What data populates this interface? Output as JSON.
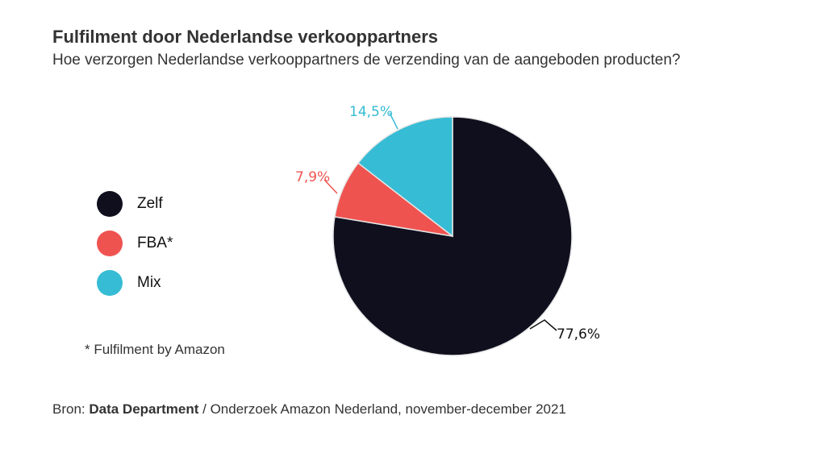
{
  "title": "Fulfilment door Nederlandse verkooppartners",
  "subtitle": "Hoe verzorgen Nederlandse verkooppartners de verzending van de aangeboden producten?",
  "footnote": "* Fulfilment by Amazon",
  "source": {
    "prefix": "Bron: ",
    "organization": "Data Department",
    "suffix": " / Onderzoek Amazon Nederland, november-december 2021"
  },
  "colors": {
    "zelf": "#0f0f1e",
    "fba": "#ef5350",
    "mix": "#36bcd4"
  },
  "chart_data": {
    "type": "pie",
    "title": "Fulfilment door Nederlandse verkooppartners",
    "slices": [
      {
        "name": "Zelf",
        "value": 77.6,
        "label": "77,6%",
        "color": "#0f0f1e"
      },
      {
        "name": "FBA*",
        "value": 7.9,
        "label": "7,9%",
        "color": "#ef5350"
      },
      {
        "name": "Mix",
        "value": 14.5,
        "label": "14,5%",
        "color": "#36bcd4"
      }
    ],
    "legend_position": "left"
  }
}
